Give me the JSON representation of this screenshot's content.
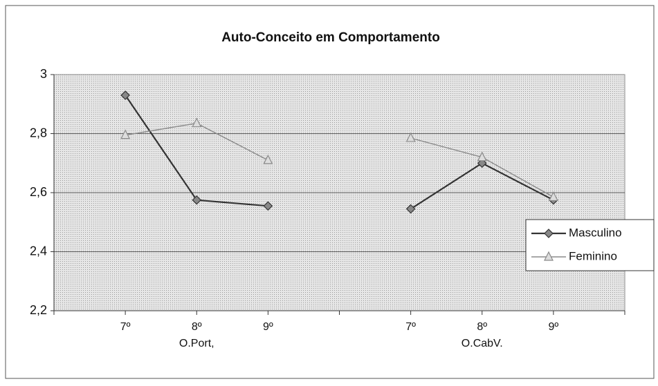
{
  "chart_data": {
    "type": "line",
    "title": "Auto-Conceito em Comportamento",
    "categories": [
      null,
      "7º",
      "8º",
      "9º",
      null,
      "7º",
      "8º",
      "9º",
      null
    ],
    "category_groups": [
      "O.Port,",
      "O.CabV."
    ],
    "series": [
      {
        "name": "Masculino",
        "color": "#333333",
        "marker": "diamond",
        "values": [
          null,
          2.93,
          2.575,
          2.555,
          null,
          2.545,
          2.7,
          2.575,
          null
        ]
      },
      {
        "name": "Feminino",
        "color": "#8a8a8a",
        "marker": "triangle",
        "values": [
          null,
          2.795,
          2.835,
          2.71,
          null,
          2.785,
          2.72,
          2.585,
          null
        ]
      }
    ],
    "ylim": [
      2.2,
      3
    ],
    "yticks": [
      {
        "value": 2.2,
        "label": "2,2"
      },
      {
        "value": 2.4,
        "label": "2,4"
      },
      {
        "value": 2.6,
        "label": "2,6"
      },
      {
        "value": 2.8,
        "label": "2,8"
      },
      3
    ],
    "grid": true,
    "legend": "right"
  }
}
